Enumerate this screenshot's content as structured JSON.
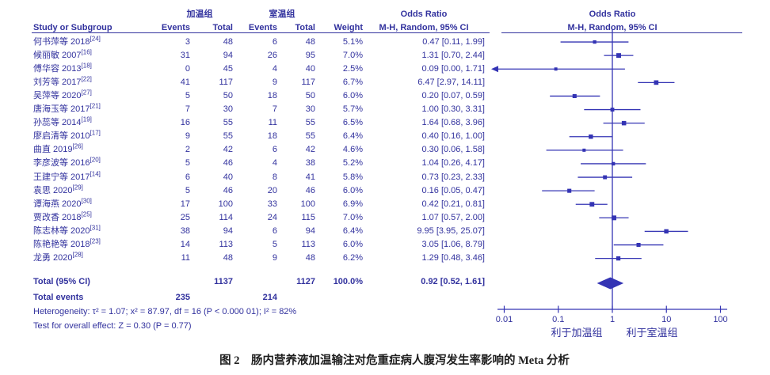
{
  "colors": {
    "ink": "#32329E",
    "plot": "#3434B4",
    "caption_text": "#1E1E1E"
  },
  "table": {
    "group1": "加温组",
    "group2": "室温组",
    "col_study": "Study or Subgroup",
    "col_events": "Events",
    "col_total": "Total",
    "col_weight": "Weight",
    "or_title": "Odds Ratio",
    "mh_subtitle": "M-H, Random, 95% CI",
    "total_label": "Total (95% CI)",
    "total_events_label": "Total events",
    "heterogeneity": "Heterogeneity: τ² = 1.07; x² = 87.97, df = 16 (P < 0.000 01); I² = 82%",
    "overall_effect": "Test for overall effect: Z = 0.30 (P = 0.77)"
  },
  "caption": "图 2　肠内营养液加温输注对危重症病人腹泻发生率影响的 Meta 分析",
  "chart_data": {
    "type": "forest",
    "x_scale": "log",
    "x_ticks": [
      0.01,
      0.1,
      1,
      10,
      100
    ],
    "x_range": [
      0.01,
      100
    ],
    "favor_left": "利于加温组",
    "favor_right": "利于室温组",
    "studies": [
      {
        "study": "何书萍等 2018",
        "ref": "[24]",
        "e1": 3,
        "t1": 48,
        "e2": 6,
        "t2": 48,
        "weight": "5.1%",
        "ci": "0.47 [0.11, 1.99]",
        "or": 0.47,
        "lo": 0.11,
        "hi": 1.99
      },
      {
        "study": "候丽敏 2007",
        "ref": "[16]",
        "e1": 31,
        "t1": 94,
        "e2": 26,
        "t2": 95,
        "weight": "7.0%",
        "ci": "1.31 [0.70, 2.44]",
        "or": 1.31,
        "lo": 0.7,
        "hi": 2.44
      },
      {
        "study": "傅华容 2013",
        "ref": "[18]",
        "e1": 0,
        "t1": 45,
        "e2": 4,
        "t2": 40,
        "weight": "2.5%",
        "ci": "0.09 [0.00, 1.71]",
        "or": 0.09,
        "lo": 0.0,
        "hi": 1.71,
        "arrow_left": true
      },
      {
        "study": "刘芳等 2017",
        "ref": "[22]",
        "e1": 41,
        "t1": 117,
        "e2": 9,
        "t2": 117,
        "weight": "6.7%",
        "ci": "6.47 [2.97, 14.11]",
        "or": 6.47,
        "lo": 2.97,
        "hi": 14.11
      },
      {
        "study": "吴萍等 2020",
        "ref": "[27]",
        "e1": 5,
        "t1": 50,
        "e2": 18,
        "t2": 50,
        "weight": "6.0%",
        "ci": "0.20 [0.07, 0.59]",
        "or": 0.2,
        "lo": 0.07,
        "hi": 0.59
      },
      {
        "study": "唐海玉等 2017",
        "ref": "[21]",
        "e1": 7,
        "t1": 30,
        "e2": 7,
        "t2": 30,
        "weight": "5.7%",
        "ci": "1.00 [0.30, 3.31]",
        "or": 1.0,
        "lo": 0.3,
        "hi": 3.31
      },
      {
        "study": "孙蕊等 2014",
        "ref": "[19]",
        "e1": 16,
        "t1": 55,
        "e2": 11,
        "t2": 55,
        "weight": "6.5%",
        "ci": "1.64 [0.68, 3.96]",
        "or": 1.64,
        "lo": 0.68,
        "hi": 3.96
      },
      {
        "study": "廖启清等 2010",
        "ref": "[17]",
        "e1": 9,
        "t1": 55,
        "e2": 18,
        "t2": 55,
        "weight": "6.4%",
        "ci": "0.40 [0.16, 1.00]",
        "or": 0.4,
        "lo": 0.16,
        "hi": 1.0
      },
      {
        "study": "曲直 2019",
        "ref": "[26]",
        "e1": 2,
        "t1": 42,
        "e2": 6,
        "t2": 42,
        "weight": "4.6%",
        "ci": "0.30 [0.06, 1.58]",
        "or": 0.3,
        "lo": 0.06,
        "hi": 1.58
      },
      {
        "study": "李彦波等 2016",
        "ref": "[20]",
        "e1": 5,
        "t1": 46,
        "e2": 4,
        "t2": 38,
        "weight": "5.2%",
        "ci": "1.04 [0.26, 4.17]",
        "or": 1.04,
        "lo": 0.26,
        "hi": 4.17
      },
      {
        "study": "王建宁等 2017",
        "ref": "[14]",
        "e1": 6,
        "t1": 40,
        "e2": 8,
        "t2": 41,
        "weight": "5.8%",
        "ci": "0.73 [0.23, 2.33]",
        "or": 0.73,
        "lo": 0.23,
        "hi": 2.33
      },
      {
        "study": "袁思 2020",
        "ref": "[29]",
        "e1": 5,
        "t1": 46,
        "e2": 20,
        "t2": 46,
        "weight": "6.0%",
        "ci": "0.16 [0.05, 0.47]",
        "or": 0.16,
        "lo": 0.05,
        "hi": 0.47
      },
      {
        "study": "谭海燕 2020",
        "ref": "[30]",
        "e1": 17,
        "t1": 100,
        "e2": 33,
        "t2": 100,
        "weight": "6.9%",
        "ci": "0.42 [0.21, 0.81]",
        "or": 0.42,
        "lo": 0.21,
        "hi": 0.81
      },
      {
        "study": "贾改香 2018",
        "ref": "[25]",
        "e1": 25,
        "t1": 114,
        "e2": 24,
        "t2": 115,
        "weight": "7.0%",
        "ci": "1.07 [0.57, 2.00]",
        "or": 1.07,
        "lo": 0.57,
        "hi": 2.0
      },
      {
        "study": "陈志林等 2020",
        "ref": "[31]",
        "e1": 38,
        "t1": 94,
        "e2": 6,
        "t2": 94,
        "weight": "6.4%",
        "ci": "9.95 [3.95, 25.07]",
        "or": 9.95,
        "lo": 3.95,
        "hi": 25.07
      },
      {
        "study": "陈艳艳等 2018",
        "ref": "[23]",
        "e1": 14,
        "t1": 113,
        "e2": 5,
        "t2": 113,
        "weight": "6.0%",
        "ci": "3.05 [1.06, 8.79]",
        "or": 3.05,
        "lo": 1.06,
        "hi": 8.79
      },
      {
        "study": "龙勇 2020",
        "ref": "[28]",
        "e1": 11,
        "t1": 48,
        "e2": 9,
        "t2": 48,
        "weight": "6.2%",
        "ci": "1.29 [0.48, 3.46]",
        "or": 1.29,
        "lo": 0.48,
        "hi": 3.46
      }
    ],
    "total": {
      "t1": 1137,
      "t2": 1127,
      "weight": "100.0%",
      "ci": "0.92 [0.52, 1.61]",
      "or": 0.92,
      "lo": 0.52,
      "hi": 1.61
    },
    "total_events": {
      "e1": 235,
      "e2": 214
    }
  }
}
